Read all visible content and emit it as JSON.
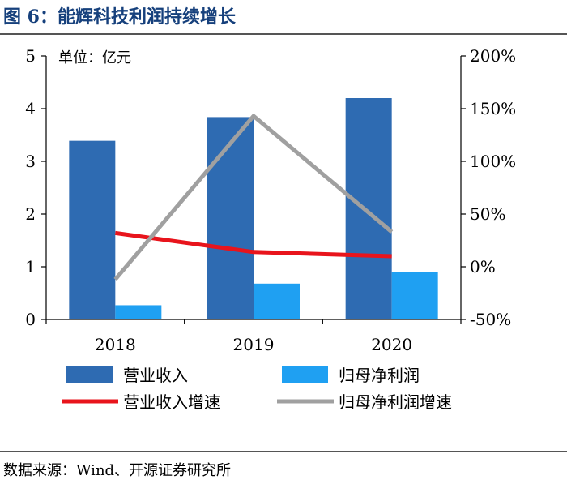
{
  "figure_title": "图 6：能辉科技利润持续增长",
  "source_text": "数据来源：Wind、开源证券研究所",
  "colors": {
    "revenue_bar": "#2e6bb2",
    "profit_bar": "#1fa0f2",
    "revenue_growth_line": "#e8141c",
    "profit_growth_line": "#a0a0a0",
    "title": "#16407c"
  },
  "chart_data": {
    "type": "bar",
    "unit_label": "单位：亿元",
    "categories": [
      "2018",
      "2019",
      "2020"
    ],
    "left_axis": {
      "ylim": [
        0,
        5
      ],
      "ticks": [
        "0",
        "1",
        "2",
        "3",
        "4",
        "5"
      ]
    },
    "right_axis": {
      "ylim": [
        -50,
        200
      ],
      "ticks": [
        "-50%",
        "0%",
        "50%",
        "100%",
        "150%",
        "200%"
      ]
    },
    "series": [
      {
        "name": "营业收入",
        "type": "bar",
        "axis": "left",
        "values": [
          3.39,
          3.84,
          4.2
        ]
      },
      {
        "name": "归母净利润",
        "type": "bar",
        "axis": "left",
        "values": [
          0.27,
          0.68,
          0.9
        ]
      },
      {
        "name": "营业收入增速",
        "type": "line",
        "axis": "right",
        "values": [
          32,
          14,
          10
        ]
      },
      {
        "name": "归母净利润增速",
        "type": "line",
        "axis": "right",
        "values": [
          -12,
          143,
          33
        ]
      }
    ],
    "legend_position": "bottom",
    "grid": false
  }
}
